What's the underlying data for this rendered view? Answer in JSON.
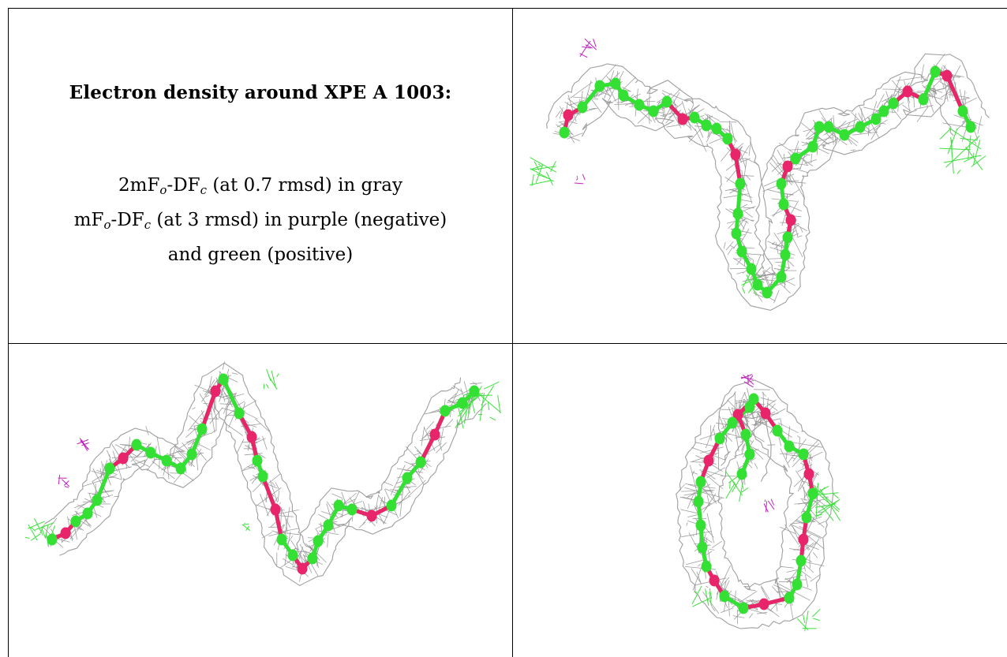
{
  "caption": {
    "title": "Electron density around XPE A 1003:",
    "line1": {
      "prefix": "2mF",
      "sub1": "o",
      "mid": "-DF",
      "sub2": "c",
      "suffix": " (at 0.7 rmsd) in gray"
    },
    "line2": {
      "prefix": "mF",
      "sub1": "o",
      "mid": "-DF",
      "sub2": "c",
      "suffix": " (at 3 rmsd) in purple (negative)"
    },
    "line3": "and green (positive)"
  },
  "colors": {
    "carbon": "#33e033",
    "oxygen": "#e8246a",
    "mesh_2fofc": "#8e8e8e",
    "diff_negative": "#c020c0",
    "diff_positive": "#3fe03f"
  },
  "views": [
    {
      "icon": "electron-density-view-1"
    },
    {
      "icon": "electron-density-view-2"
    },
    {
      "icon": "electron-density-view-3"
    }
  ]
}
